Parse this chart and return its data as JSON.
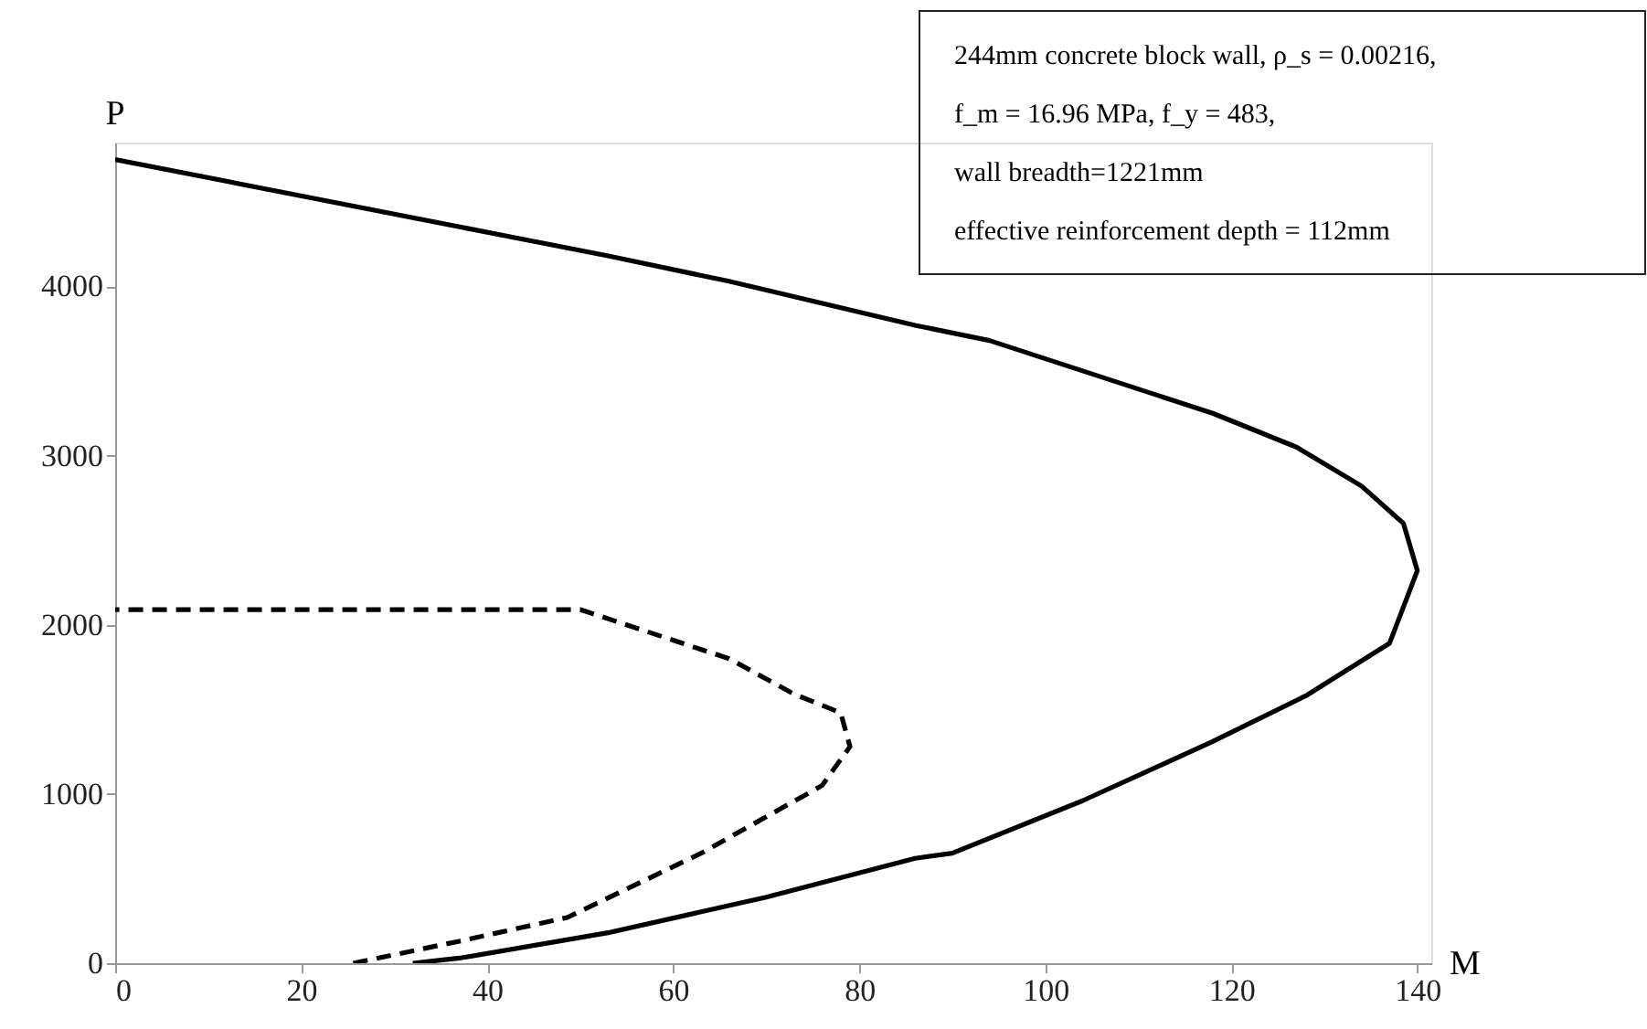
{
  "chart_data": {
    "type": "line",
    "xlabel": "M",
    "ylabel": "P",
    "xlim": [
      0,
      141.5
    ],
    "ylim": [
      0,
      4850
    ],
    "xticks": [
      0,
      20,
      40,
      60,
      80,
      100,
      120,
      140
    ],
    "yticks": [
      0,
      1000,
      2000,
      3000,
      4000
    ],
    "grid": false,
    "series": [
      {
        "color": "#000000",
        "line_style": "solid",
        "x": [
          32,
          37,
          53,
          70,
          86,
          90,
          104,
          118,
          128,
          137,
          140,
          138.5,
          134,
          127,
          118,
          94,
          86,
          66,
          53,
          0
        ],
        "values": [
          0,
          30,
          180,
          390,
          620,
          650,
          960,
          1310,
          1580,
          1890,
          2320,
          2600,
          2820,
          3050,
          3250,
          3680,
          3770,
          4030,
          4180,
          4750
        ]
      },
      {
        "color": "#000000",
        "line_style": "dashed",
        "x": [
          25.6,
          37,
          48.6,
          63,
          76,
          79,
          78,
          73,
          66,
          50,
          0
        ],
        "values": [
          0,
          130,
          270,
          650,
          1050,
          1280,
          1480,
          1590,
          1800,
          2090,
          2090
        ]
      }
    ],
    "annotations": [
      "244mm concrete block wall, ρ_s = 0.00216,",
      "f_m = 16.96 MPa, f_y = 483,",
      "wall breadth=1221mm",
      "effective reinforcement depth = 112mm"
    ]
  }
}
